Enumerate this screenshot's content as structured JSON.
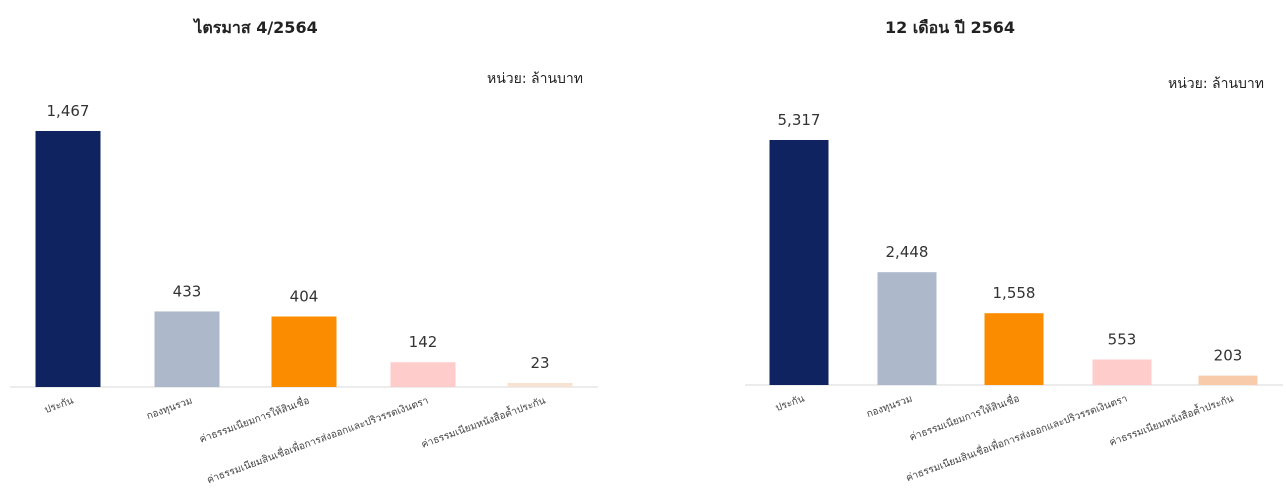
{
  "chart_data": [
    {
      "type": "bar",
      "title": "ไตรมาส 4/2564",
      "unit": "หน่วย: ล้านบาท",
      "categories": [
        "ประกัน",
        "กองทุนรวม",
        "ค่าธรรมเนียมการให้สินเชื่อ",
        "ค่าธรรมเนียมสินเชื่อเพื่อการส่งออกและปริวรรตเงินตรา",
        "ค่าธรรมเนียมหนังสือค้ำประกัน"
      ],
      "values": [
        1467,
        433,
        404,
        142,
        23
      ],
      "value_labels": [
        "1,467",
        "433",
        "404",
        "142",
        "23"
      ],
      "colors": [
        "#0f2360",
        "#adb8ca",
        "#fb8c00",
        "#ffcccc",
        "#f7e3d3"
      ],
      "ylim": [
        0,
        1467
      ],
      "grid": false,
      "legend": false
    },
    {
      "type": "bar",
      "title": "12 เดือน ปี 2564",
      "unit": "หน่วย: ล้านบาท",
      "categories": [
        "ประกัน",
        "กองทุนรวม",
        "ค่าธรรมเนียมการให้สินเชื่อ",
        "ค่าธรรมเนียมสินเชื่อเพื่อการส่งออกและปริวรรตเงินตรา",
        "ค่าธรรมเนียมหนังสือค้ำประกัน"
      ],
      "values": [
        5317,
        2448,
        1558,
        553,
        203
      ],
      "value_labels": [
        "5,317",
        "2,448",
        "1,558",
        "553",
        "203"
      ],
      "colors": [
        "#0f2360",
        "#adb8ca",
        "#fb8c00",
        "#ffcccc",
        "#f8cbaa"
      ],
      "ylim": [
        0,
        5317
      ],
      "grid": false,
      "legend": false
    }
  ]
}
